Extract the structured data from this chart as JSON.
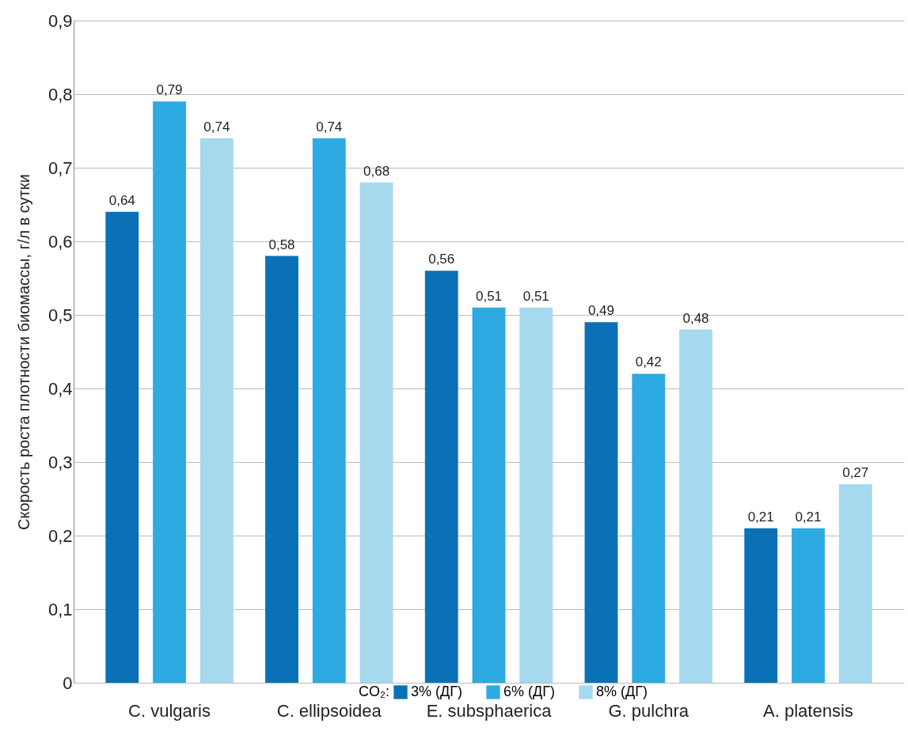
{
  "chart_data": {
    "type": "bar",
    "ylabel": "Скорость роста плотности биомассы, г/л в сутки",
    "legend_title": "CO₂:",
    "categories": [
      "C. vulgaris",
      "C. ellipsoidea",
      "E. subsphaerica",
      "G. pulchra",
      "A. platensis"
    ],
    "series": [
      {
        "name": "3% (ДГ)",
        "color": "#0a71b7",
        "values": [
          0.64,
          0.58,
          0.56,
          0.49,
          0.21
        ],
        "value_labels": [
          "0,64",
          "0,58",
          "0,56",
          "0,49",
          "0,21"
        ]
      },
      {
        "name": "6% (ДГ)",
        "color": "#2eaae2",
        "values": [
          0.79,
          0.74,
          0.51,
          0.42,
          0.21
        ],
        "value_labels": [
          "0,79",
          "0,74",
          "0,51",
          "0,42",
          "0,21"
        ]
      },
      {
        "name": "8% (ДГ)",
        "color": "#a6d9ee",
        "values": [
          0.74,
          0.68,
          0.51,
          0.48,
          0.27
        ],
        "value_labels": [
          "0,74",
          "0,68",
          "0,51",
          "0,48",
          "0,27"
        ]
      }
    ],
    "ylim": [
      0,
      0.9
    ],
    "yticks": [
      {
        "value": 0,
        "label": "0"
      },
      {
        "value": 0.1,
        "label": "0,1"
      },
      {
        "value": 0.2,
        "label": "0,2"
      },
      {
        "value": 0.3,
        "label": "0,3"
      },
      {
        "value": 0.4,
        "label": "0,4"
      },
      {
        "value": 0.5,
        "label": "0,5"
      },
      {
        "value": 0.6,
        "label": "0,6"
      },
      {
        "value": 0.7,
        "label": "0,7"
      },
      {
        "value": 0.8,
        "label": "0,8"
      },
      {
        "value": 0.9,
        "label": "0,9"
      }
    ],
    "grid": "y",
    "legend": "bottom"
  }
}
